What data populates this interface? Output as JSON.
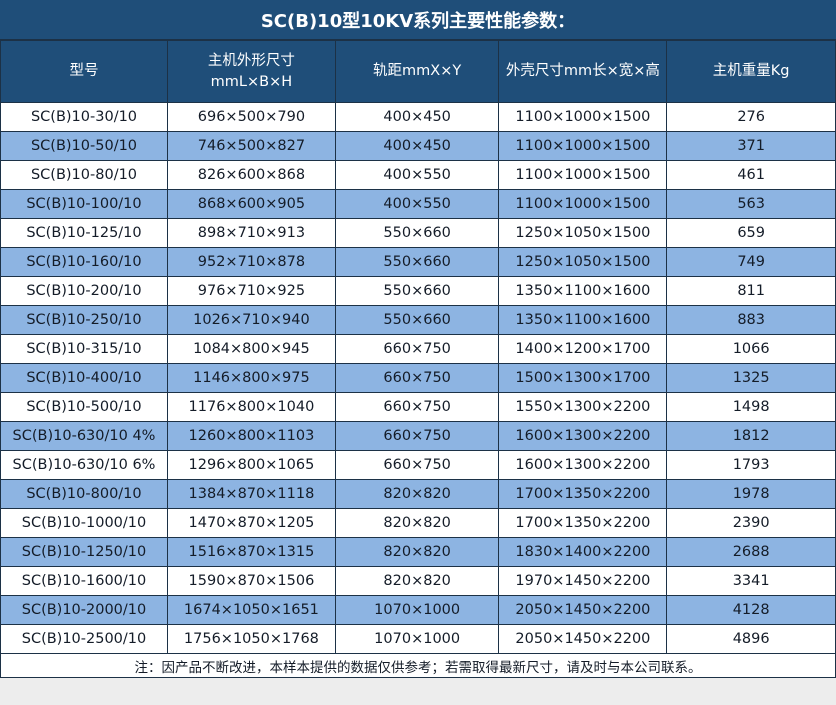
{
  "title": "SC(B)10型10KV系列主要性能参数：",
  "footer_note": "注：因产品不断改进，本样本提供的数据仅供参考；若需取得最新尺寸，请及时与本公司联系。",
  "colors": {
    "header_bg": "#1f4e79",
    "row_alt_bg": "#8db4e2",
    "row_bg": "#ffffff",
    "border": "#1c3146",
    "header_text": "#ffffff",
    "body_text": "#141c28",
    "page_bg": "#ededed"
  },
  "chart_data": {
    "type": "table",
    "title": "SC(B)10型10KV系列主要性能参数：",
    "columns": [
      {
        "label": "型号"
      },
      {
        "label": "主机外形尺寸",
        "sublabel": "mmL×B×H"
      },
      {
        "label": "轨距mmX×Y"
      },
      {
        "label": "外壳尺寸mm长×宽×高"
      },
      {
        "label": "主机重量Kg"
      }
    ],
    "rows": [
      [
        "SC(B)10-30/10",
        "696×500×790",
        "400×450",
        "1100×1000×1500",
        "276"
      ],
      [
        "SC(B)10-50/10",
        "746×500×827",
        "400×450",
        "1100×1000×1500",
        "371"
      ],
      [
        "SC(B)10-80/10",
        "826×600×868",
        "400×550",
        "1100×1000×1500",
        "461"
      ],
      [
        "SC(B)10-100/10",
        "868×600×905",
        "400×550",
        "1100×1000×1500",
        "563"
      ],
      [
        "SC(B)10-125/10",
        "898×710×913",
        "550×660",
        "1250×1050×1500",
        "659"
      ],
      [
        "SC(B)10-160/10",
        "952×710×878",
        "550×660",
        "1250×1050×1500",
        "749"
      ],
      [
        "SC(B)10-200/10",
        "976×710×925",
        "550×660",
        "1350×1100×1600",
        "811"
      ],
      [
        "SC(B)10-250/10",
        "1026×710×940",
        "550×660",
        "1350×1100×1600",
        "883"
      ],
      [
        "SC(B)10-315/10",
        "1084×800×945",
        "660×750",
        "1400×1200×1700",
        "1066"
      ],
      [
        "SC(B)10-400/10",
        "1146×800×975",
        "660×750",
        "1500×1300×1700",
        "1325"
      ],
      [
        "SC(B)10-500/10",
        "1176×800×1040",
        "660×750",
        "1550×1300×2200",
        "1498"
      ],
      [
        "SC(B)10-630/10 4%",
        "1260×800×1103",
        "660×750",
        "1600×1300×2200",
        "1812"
      ],
      [
        "SC(B)10-630/10 6%",
        "1296×800×1065",
        "660×750",
        "1600×1300×2200",
        "1793"
      ],
      [
        "SC(B)10-800/10",
        "1384×870×1118",
        "820×820",
        "1700×1350×2200",
        "1978"
      ],
      [
        "SC(B)10-1000/10",
        "1470×870×1205",
        "820×820",
        "1700×1350×2200",
        "2390"
      ],
      [
        "SC(B)10-1250/10",
        "1516×870×1315",
        "820×820",
        "1830×1400×2200",
        "2688"
      ],
      [
        "SC(B)10-1600/10",
        "1590×870×1506",
        "820×820",
        "1970×1450×2200",
        "3341"
      ],
      [
        "SC(B)10-2000/10",
        "1674×1050×1651",
        "1070×1000",
        "2050×1450×2200",
        "4128"
      ],
      [
        "SC(B)10-2500/10",
        "1756×1050×1768",
        "1070×1000",
        "2050×1450×2200",
        "4896"
      ]
    ]
  }
}
